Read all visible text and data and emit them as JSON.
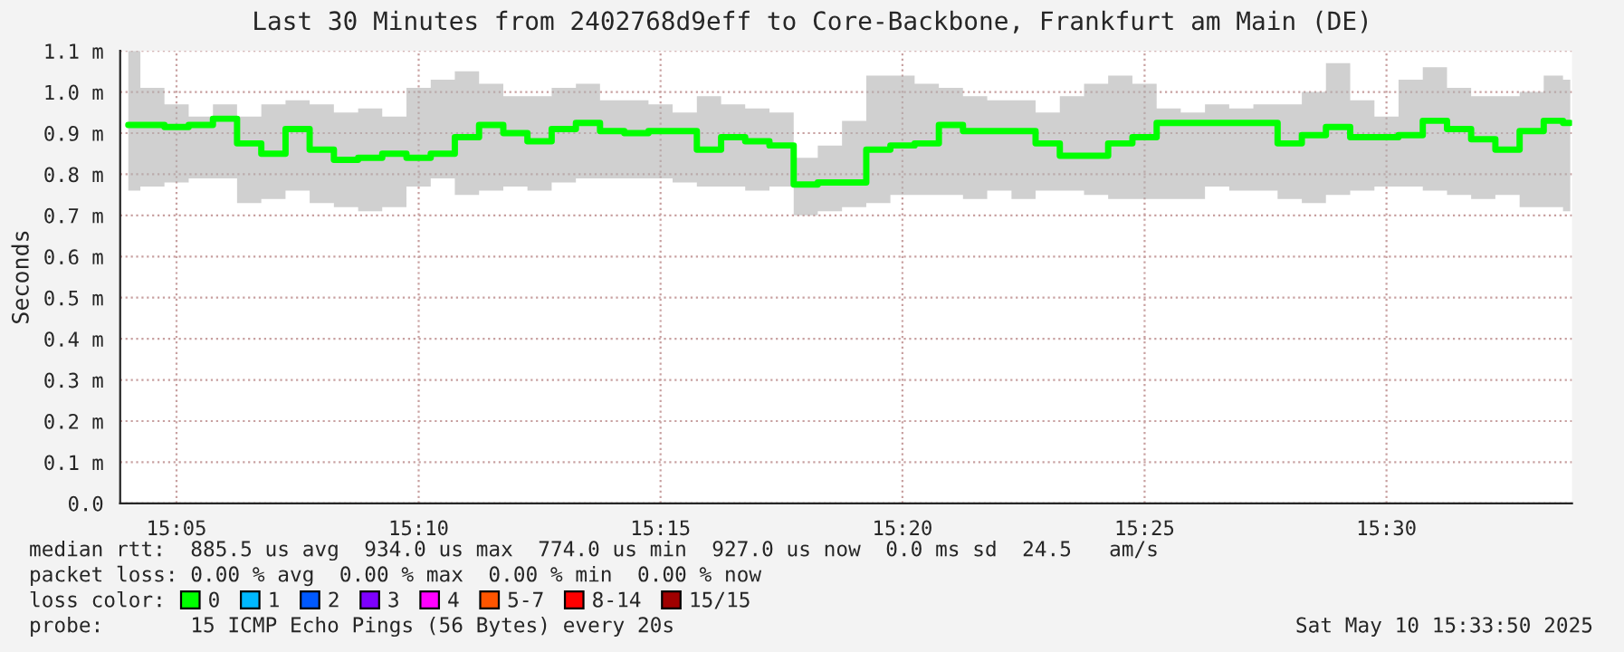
{
  "chart_data": {
    "type": "step",
    "title": "Last 30 Minutes from 2402768d9eff to Core-Backbone, Frankfurt am Main (DE)",
    "ylabel": "Seconds",
    "legend_title": "loss color:",
    "legend": "bottom",
    "grid": true,
    "line_style": "solid",
    "marker": "none",
    "x": [
      15.0667,
      15.075,
      15.0833,
      15.0917,
      15.1,
      15.1083,
      15.1167,
      15.125,
      15.1333,
      15.1417,
      15.15,
      15.1583,
      15.1667,
      15.175,
      15.1833,
      15.1917,
      15.2,
      15.2083,
      15.2167,
      15.225,
      15.2333,
      15.2417,
      15.25,
      15.2583,
      15.2667,
      15.275,
      15.2833,
      15.2917,
      15.3,
      15.3083,
      15.3167,
      15.325,
      15.3333,
      15.3417,
      15.35,
      15.3583,
      15.3667,
      15.375,
      15.3833,
      15.3917,
      15.4,
      15.4083,
      15.4167,
      15.425,
      15.4333,
      15.4417,
      15.45,
      15.4583,
      15.4667,
      15.475,
      15.4833,
      15.4917,
      15.5,
      15.5083,
      15.5167,
      15.525,
      15.5333,
      15.5417,
      15.55,
      15.5583,
      15.5633
    ],
    "xlim": [
      15.0639,
      15.5639
    ],
    "xticks": [
      {
        "value": 15.0833,
        "label": "15:05"
      },
      {
        "value": 15.1667,
        "label": "15:10"
      },
      {
        "value": 15.25,
        "label": "15:15"
      },
      {
        "value": 15.3333,
        "label": "15:20"
      },
      {
        "value": 15.4167,
        "label": "15:25"
      },
      {
        "value": 15.5,
        "label": "15:30"
      }
    ],
    "ylim": [
      0,
      1.1
    ],
    "yticks": [
      {
        "value": 0,
        "label": "0.0"
      },
      {
        "value": 0.1,
        "label": "0.1 m"
      },
      {
        "value": 0.2,
        "label": "0.2 m"
      },
      {
        "value": 0.3,
        "label": "0.3 m"
      },
      {
        "value": 0.4,
        "label": "0.4 m"
      },
      {
        "value": 0.5,
        "label": "0.5 m"
      },
      {
        "value": 0.6,
        "label": "0.6 m"
      },
      {
        "value": 0.7,
        "label": "0.7 m"
      },
      {
        "value": 0.8,
        "label": "0.8 m"
      },
      {
        "value": 0.9,
        "label": "0.9 m"
      },
      {
        "value": 1.0,
        "label": "1.0 m"
      },
      {
        "value": 1.1,
        "label": "1.1 m"
      }
    ],
    "series": [
      {
        "name": "0",
        "color": "#00ff00",
        "values": [
          0.92,
          0.92,
          0.915,
          0.92,
          0.935,
          0.875,
          0.85,
          0.91,
          0.86,
          0.835,
          0.84,
          0.85,
          0.84,
          0.85,
          0.89,
          0.92,
          0.9,
          0.88,
          0.91,
          0.925,
          0.905,
          0.9,
          0.905,
          0.905,
          0.86,
          0.89,
          0.88,
          0.87,
          0.775,
          0.78,
          0.78,
          0.86,
          0.87,
          0.875,
          0.92,
          0.905,
          0.905,
          0.905,
          0.875,
          0.845,
          0.845,
          0.875,
          0.89,
          0.925,
          0.925,
          0.925,
          0.925,
          0.925,
          0.875,
          0.895,
          0.915,
          0.89,
          0.89,
          0.895,
          0.93,
          0.91,
          0.885,
          0.86,
          0.905,
          0.93,
          0.925
        ],
        "lower": [
          0.76,
          0.77,
          0.78,
          0.79,
          0.79,
          0.73,
          0.74,
          0.76,
          0.73,
          0.72,
          0.71,
          0.72,
          0.77,
          0.79,
          0.75,
          0.76,
          0.77,
          0.76,
          0.78,
          0.79,
          0.79,
          0.79,
          0.79,
          0.78,
          0.77,
          0.77,
          0.76,
          0.77,
          0.7,
          0.71,
          0.72,
          0.73,
          0.75,
          0.75,
          0.75,
          0.74,
          0.76,
          0.74,
          0.76,
          0.76,
          0.75,
          0.74,
          0.74,
          0.74,
          0.74,
          0.77,
          0.76,
          0.76,
          0.74,
          0.73,
          0.75,
          0.76,
          0.77,
          0.77,
          0.76,
          0.75,
          0.74,
          0.75,
          0.72,
          0.72,
          0.71
        ],
        "upper": [
          1.1,
          1.01,
          0.97,
          0.94,
          0.97,
          0.94,
          0.97,
          0.98,
          0.97,
          0.95,
          0.96,
          0.94,
          1.01,
          1.03,
          1.05,
          1.02,
          0.99,
          0.99,
          1.01,
          1.02,
          0.98,
          0.98,
          0.97,
          0.95,
          0.99,
          0.97,
          0.96,
          0.95,
          0.84,
          0.87,
          0.93,
          1.04,
          1.04,
          1.02,
          1.01,
          0.99,
          0.98,
          0.98,
          0.95,
          0.99,
          1.02,
          1.04,
          1.02,
          0.96,
          0.95,
          0.97,
          0.96,
          0.97,
          0.97,
          1.0,
          1.07,
          0.98,
          0.94,
          1.03,
          1.06,
          1.01,
          0.99,
          0.99,
          1.0,
          1.04,
          1.03
        ]
      },
      {
        "name": "1",
        "color": "#00b8ff",
        "values": [
          null,
          null,
          null,
          null,
          null,
          null,
          null,
          null,
          null,
          null,
          null,
          null,
          null,
          null,
          null,
          null,
          null,
          null,
          null,
          null,
          null,
          null,
          null,
          null,
          null,
          null,
          null,
          null,
          null,
          null,
          null,
          null,
          null,
          null,
          null,
          null,
          null,
          null,
          null,
          null,
          null,
          null,
          null,
          null,
          null,
          null,
          null,
          null,
          null,
          null,
          null,
          null,
          null,
          null,
          null,
          null,
          null,
          null,
          null,
          null,
          null
        ]
      },
      {
        "name": "2",
        "color": "#0059ff",
        "values": [
          null,
          null,
          null,
          null,
          null,
          null,
          null,
          null,
          null,
          null,
          null,
          null,
          null,
          null,
          null,
          null,
          null,
          null,
          null,
          null,
          null,
          null,
          null,
          null,
          null,
          null,
          null,
          null,
          null,
          null,
          null,
          null,
          null,
          null,
          null,
          null,
          null,
          null,
          null,
          null,
          null,
          null,
          null,
          null,
          null,
          null,
          null,
          null,
          null,
          null,
          null,
          null,
          null,
          null,
          null,
          null,
          null,
          null,
          null,
          null,
          null
        ]
      },
      {
        "name": "3",
        "color": "#7e00ff",
        "values": [
          null,
          null,
          null,
          null,
          null,
          null,
          null,
          null,
          null,
          null,
          null,
          null,
          null,
          null,
          null,
          null,
          null,
          null,
          null,
          null,
          null,
          null,
          null,
          null,
          null,
          null,
          null,
          null,
          null,
          null,
          null,
          null,
          null,
          null,
          null,
          null,
          null,
          null,
          null,
          null,
          null,
          null,
          null,
          null,
          null,
          null,
          null,
          null,
          null,
          null,
          null,
          null,
          null,
          null,
          null,
          null,
          null,
          null,
          null,
          null,
          null
        ]
      },
      {
        "name": "4",
        "color": "#ff00ff",
        "values": [
          null,
          null,
          null,
          null,
          null,
          null,
          null,
          null,
          null,
          null,
          null,
          null,
          null,
          null,
          null,
          null,
          null,
          null,
          null,
          null,
          null,
          null,
          null,
          null,
          null,
          null,
          null,
          null,
          null,
          null,
          null,
          null,
          null,
          null,
          null,
          null,
          null,
          null,
          null,
          null,
          null,
          null,
          null,
          null,
          null,
          null,
          null,
          null,
          null,
          null,
          null,
          null,
          null,
          null,
          null,
          null,
          null,
          null,
          null,
          null,
          null
        ]
      },
      {
        "name": "5-7",
        "color": "#ff5500",
        "values": [
          null,
          null,
          null,
          null,
          null,
          null,
          null,
          null,
          null,
          null,
          null,
          null,
          null,
          null,
          null,
          null,
          null,
          null,
          null,
          null,
          null,
          null,
          null,
          null,
          null,
          null,
          null,
          null,
          null,
          null,
          null,
          null,
          null,
          null,
          null,
          null,
          null,
          null,
          null,
          null,
          null,
          null,
          null,
          null,
          null,
          null,
          null,
          null,
          null,
          null,
          null,
          null,
          null,
          null,
          null,
          null,
          null,
          null,
          null,
          null,
          null
        ]
      },
      {
        "name": "8-14",
        "color": "#ff0000",
        "values": [
          null,
          null,
          null,
          null,
          null,
          null,
          null,
          null,
          null,
          null,
          null,
          null,
          null,
          null,
          null,
          null,
          null,
          null,
          null,
          null,
          null,
          null,
          null,
          null,
          null,
          null,
          null,
          null,
          null,
          null,
          null,
          null,
          null,
          null,
          null,
          null,
          null,
          null,
          null,
          null,
          null,
          null,
          null,
          null,
          null,
          null,
          null,
          null,
          null,
          null,
          null,
          null,
          null,
          null,
          null,
          null,
          null,
          null,
          null,
          null,
          null
        ]
      },
      {
        "name": "15/15",
        "color": "#a10000",
        "values": [
          null,
          null,
          null,
          null,
          null,
          null,
          null,
          null,
          null,
          null,
          null,
          null,
          null,
          null,
          null,
          null,
          null,
          null,
          null,
          null,
          null,
          null,
          null,
          null,
          null,
          null,
          null,
          null,
          null,
          null,
          null,
          null,
          null,
          null,
          null,
          null,
          null,
          null,
          null,
          null,
          null,
          null,
          null,
          null,
          null,
          null,
          null,
          null,
          null,
          null,
          null,
          null,
          null,
          null,
          null,
          null,
          null,
          null,
          null,
          null,
          null
        ]
      }
    ],
    "annotations": [
      "median rtt:  885.5 us avg  934.0 us max  774.0 us min  927.0 us now  0.0 ms sd  24.5   am/s",
      "packet loss: 0.00 % avg  0.00 % max  0.00 % min  0.00 % now",
      "probe:       15 ICMP Echo Pings (56 Bytes) every 20s",
      "Sat May 10 15:33:50 2025"
    ]
  }
}
